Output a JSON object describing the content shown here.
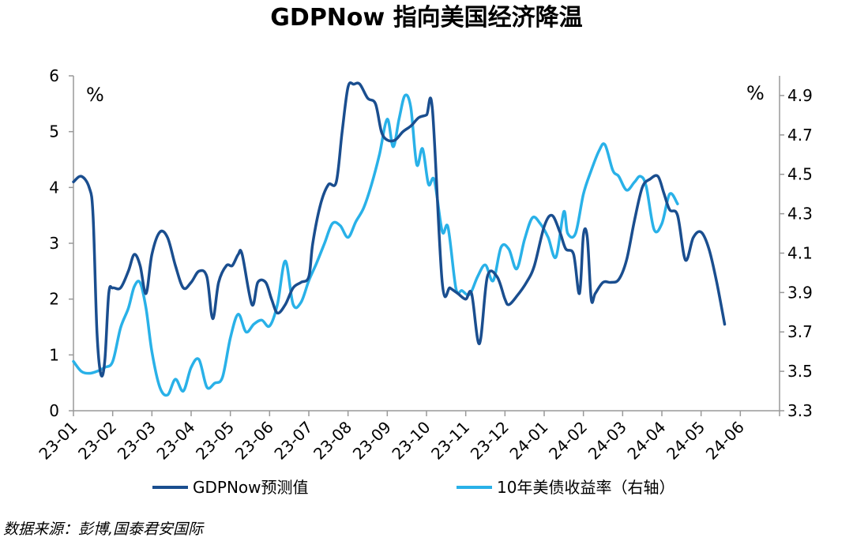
{
  "chart_data": {
    "type": "line",
    "title": "GDPNow 指向美国经济降温",
    "source": "数据来源：彭博,国泰君安国际",
    "left_axis": {
      "unit_label": "%",
      "ylim": [
        0,
        6
      ],
      "ticks": [
        "0",
        "1",
        "2",
        "3",
        "4",
        "5",
        "6"
      ]
    },
    "right_axis": {
      "unit_label": "%",
      "ylim": [
        3.3,
        5.0
      ],
      "ticks": [
        "3.3",
        "3.5",
        "3.7",
        "3.9",
        "4.1",
        "4.3",
        "4.5",
        "4.7",
        "4.9"
      ]
    },
    "x_categories": [
      "23-01",
      "23-02",
      "23-03",
      "23-04",
      "23-05",
      "23-06",
      "23-07",
      "23-08",
      "23-09",
      "23-10",
      "23-11",
      "23-12",
      "24-01",
      "24-02",
      "24-03",
      "24-04",
      "24-05",
      "24-06"
    ],
    "legend_position": "bottom",
    "grid": false,
    "series": [
      {
        "name": "GDPNow预测值",
        "axis": "left",
        "color": "#1a4e8f",
        "points": [
          [
            0.0,
            4.1
          ],
          [
            0.2,
            4.2
          ],
          [
            0.4,
            4.0
          ],
          [
            0.5,
            3.5
          ],
          [
            0.6,
            1.4
          ],
          [
            0.7,
            0.65
          ],
          [
            0.8,
            0.9
          ],
          [
            0.9,
            2.1
          ],
          [
            1.0,
            2.2
          ],
          [
            1.2,
            2.2
          ],
          [
            1.4,
            2.5
          ],
          [
            1.55,
            2.8
          ],
          [
            1.7,
            2.6
          ],
          [
            1.85,
            2.1
          ],
          [
            2.0,
            2.8
          ],
          [
            2.2,
            3.2
          ],
          [
            2.4,
            3.1
          ],
          [
            2.6,
            2.6
          ],
          [
            2.8,
            2.2
          ],
          [
            3.0,
            2.3
          ],
          [
            3.2,
            2.5
          ],
          [
            3.4,
            2.4
          ],
          [
            3.55,
            1.65
          ],
          [
            3.7,
            2.3
          ],
          [
            3.9,
            2.6
          ],
          [
            4.05,
            2.6
          ],
          [
            4.2,
            2.8
          ],
          [
            4.3,
            2.8
          ],
          [
            4.55,
            1.9
          ],
          [
            4.7,
            2.3
          ],
          [
            4.9,
            2.3
          ],
          [
            5.05,
            2.0
          ],
          [
            5.2,
            1.75
          ],
          [
            5.4,
            1.9
          ],
          [
            5.6,
            2.2
          ],
          [
            5.8,
            2.3
          ],
          [
            6.0,
            2.4
          ],
          [
            6.1,
            3.0
          ],
          [
            6.3,
            3.7
          ],
          [
            6.5,
            4.05
          ],
          [
            6.7,
            4.1
          ],
          [
            6.85,
            5.0
          ],
          [
            7.0,
            5.8
          ],
          [
            7.15,
            5.85
          ],
          [
            7.3,
            5.85
          ],
          [
            7.5,
            5.6
          ],
          [
            7.7,
            5.5
          ],
          [
            7.85,
            5.0
          ],
          [
            8.0,
            4.85
          ],
          [
            8.2,
            4.85
          ],
          [
            8.4,
            5.0
          ],
          [
            8.6,
            5.1
          ],
          [
            8.8,
            5.25
          ],
          [
            9.0,
            5.3
          ],
          [
            9.15,
            5.4
          ],
          [
            9.4,
            2.3
          ],
          [
            9.6,
            2.2
          ],
          [
            9.8,
            2.1
          ],
          [
            10.0,
            2.0
          ],
          [
            10.15,
            2.1
          ],
          [
            10.35,
            1.2
          ],
          [
            10.55,
            2.4
          ],
          [
            10.8,
            2.4
          ],
          [
            11.0,
            2.0
          ],
          [
            11.1,
            1.9
          ],
          [
            11.3,
            2.05
          ],
          [
            11.55,
            2.3
          ],
          [
            11.75,
            2.6
          ],
          [
            12.0,
            3.3
          ],
          [
            12.2,
            3.5
          ],
          [
            12.4,
            3.2
          ],
          [
            12.55,
            2.9
          ],
          [
            12.75,
            2.8
          ],
          [
            12.9,
            2.1
          ],
          [
            13.0,
            3.15
          ],
          [
            13.1,
            3.1
          ],
          [
            13.2,
            2.0
          ],
          [
            13.3,
            2.1
          ],
          [
            13.5,
            2.3
          ],
          [
            13.7,
            2.3
          ],
          [
            13.9,
            2.35
          ],
          [
            14.1,
            2.7
          ],
          [
            14.3,
            3.4
          ],
          [
            14.5,
            4.0
          ],
          [
            14.7,
            4.15
          ],
          [
            14.9,
            4.2
          ],
          [
            15.05,
            3.9
          ],
          [
            15.2,
            3.6
          ],
          [
            15.4,
            3.5
          ],
          [
            15.6,
            2.7
          ],
          [
            15.8,
            3.1
          ],
          [
            16.0,
            3.2
          ],
          [
            16.2,
            2.9
          ],
          [
            16.4,
            2.3
          ],
          [
            16.6,
            1.55
          ]
        ]
      },
      {
        "name": "10年美债收益率（右轴）",
        "axis": "right",
        "color": "#29b1e8",
        "points": [
          [
            0.0,
            3.55
          ],
          [
            0.2,
            3.5
          ],
          [
            0.4,
            3.49
          ],
          [
            0.6,
            3.5
          ],
          [
            0.8,
            3.52
          ],
          [
            1.0,
            3.55
          ],
          [
            1.2,
            3.72
          ],
          [
            1.4,
            3.82
          ],
          [
            1.55,
            3.93
          ],
          [
            1.7,
            3.95
          ],
          [
            1.85,
            3.82
          ],
          [
            2.0,
            3.6
          ],
          [
            2.2,
            3.42
          ],
          [
            2.4,
            3.38
          ],
          [
            2.6,
            3.46
          ],
          [
            2.8,
            3.4
          ],
          [
            3.0,
            3.52
          ],
          [
            3.2,
            3.56
          ],
          [
            3.4,
            3.42
          ],
          [
            3.6,
            3.44
          ],
          [
            3.8,
            3.47
          ],
          [
            4.0,
            3.67
          ],
          [
            4.2,
            3.79
          ],
          [
            4.4,
            3.7
          ],
          [
            4.6,
            3.74
          ],
          [
            4.8,
            3.76
          ],
          [
            5.0,
            3.73
          ],
          [
            5.2,
            3.84
          ],
          [
            5.4,
            4.06
          ],
          [
            5.6,
            3.84
          ],
          [
            5.8,
            3.85
          ],
          [
            6.0,
            3.96
          ],
          [
            6.2,
            4.05
          ],
          [
            6.4,
            4.15
          ],
          [
            6.6,
            4.25
          ],
          [
            6.8,
            4.24
          ],
          [
            7.0,
            4.18
          ],
          [
            7.2,
            4.26
          ],
          [
            7.4,
            4.33
          ],
          [
            7.6,
            4.45
          ],
          [
            7.8,
            4.6
          ],
          [
            8.0,
            4.78
          ],
          [
            8.15,
            4.64
          ],
          [
            8.3,
            4.78
          ],
          [
            8.45,
            4.9
          ],
          [
            8.6,
            4.84
          ],
          [
            8.75,
            4.55
          ],
          [
            8.9,
            4.63
          ],
          [
            9.05,
            4.45
          ],
          [
            9.2,
            4.47
          ],
          [
            9.4,
            4.21
          ],
          [
            9.55,
            4.23
          ],
          [
            9.75,
            3.92
          ],
          [
            9.9,
            3.91
          ],
          [
            10.1,
            3.89
          ],
          [
            10.3,
            3.98
          ],
          [
            10.5,
            4.04
          ],
          [
            10.7,
            3.96
          ],
          [
            10.9,
            4.13
          ],
          [
            11.1,
            4.12
          ],
          [
            11.3,
            4.02
          ],
          [
            11.5,
            4.17
          ],
          [
            11.7,
            4.28
          ],
          [
            11.9,
            4.25
          ],
          [
            12.1,
            4.18
          ],
          [
            12.3,
            4.08
          ],
          [
            12.5,
            4.31
          ],
          [
            12.6,
            4.2
          ],
          [
            12.8,
            4.2
          ],
          [
            13.0,
            4.4
          ],
          [
            13.2,
            4.52
          ],
          [
            13.4,
            4.62
          ],
          [
            13.55,
            4.65
          ],
          [
            13.75,
            4.52
          ],
          [
            13.9,
            4.49
          ],
          [
            14.1,
            4.42
          ],
          [
            14.3,
            4.46
          ],
          [
            14.45,
            4.49
          ],
          [
            14.6,
            4.44
          ],
          [
            14.8,
            4.22
          ],
          [
            15.0,
            4.25
          ],
          [
            15.2,
            4.4
          ],
          [
            15.4,
            4.35
          ]
        ]
      }
    ]
  }
}
